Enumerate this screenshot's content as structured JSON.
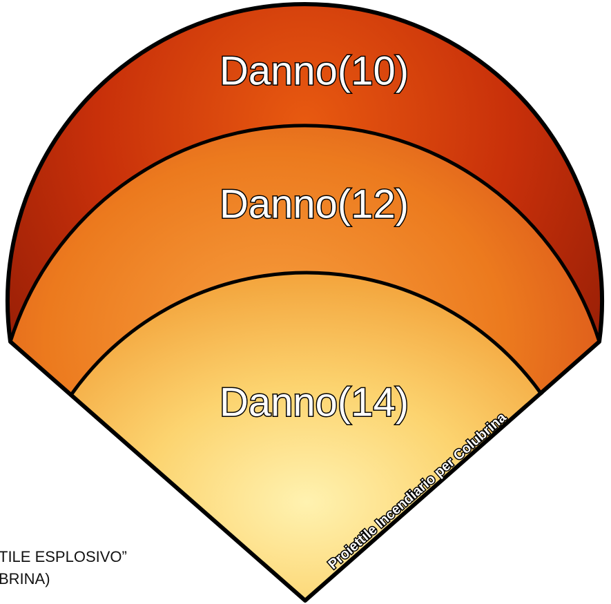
{
  "zones": [
    {
      "label": "Danno(10)"
    },
    {
      "label": "Danno(12)"
    },
    {
      "label": "Danno(14)"
    }
  ],
  "caption": "Proiettile Incendiario per Colubrina",
  "side_note": {
    "lines": [
      "TILE ESPLOSIVO”",
      "BRINA)"
    ]
  }
}
